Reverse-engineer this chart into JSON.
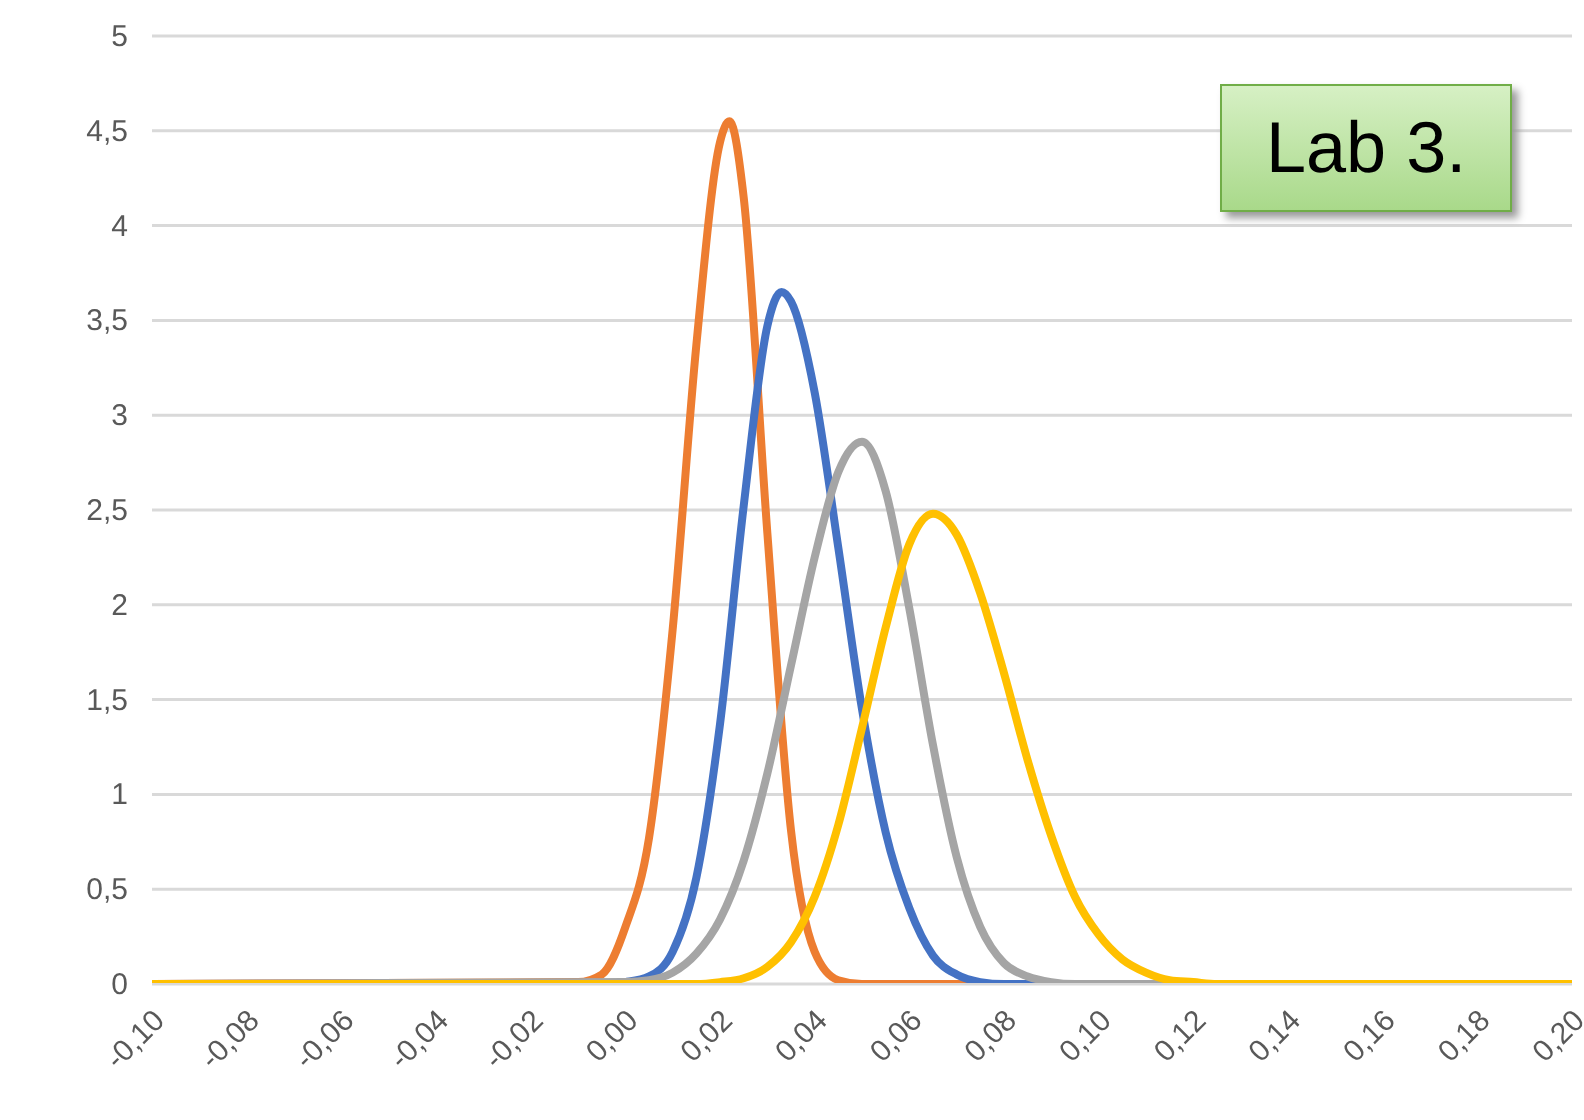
{
  "chart_data": {
    "type": "line",
    "annotations": [
      "Lab 3."
    ],
    "xlim": [
      -0.1,
      0.2
    ],
    "xticks": [
      {
        "value": -0.1,
        "label": "-0,10"
      },
      {
        "value": -0.08,
        "label": "-0,08"
      },
      {
        "value": -0.06,
        "label": "-0,06"
      },
      {
        "value": -0.04,
        "label": "-0,04"
      },
      {
        "value": -0.02,
        "label": "-0,02"
      },
      {
        "value": 0,
        "label": "0,00"
      },
      {
        "value": 0.02,
        "label": "0,02"
      },
      {
        "value": 0.04,
        "label": "0,04"
      },
      {
        "value": 0.06,
        "label": "0,06"
      },
      {
        "value": 0.08,
        "label": "0,08"
      },
      {
        "value": 0.1,
        "label": "0,10"
      },
      {
        "value": 0.12,
        "label": "0,12"
      },
      {
        "value": 0.14,
        "label": "0,14"
      },
      {
        "value": 0.16,
        "label": "0,16"
      },
      {
        "value": 0.18,
        "label": "0,18"
      },
      {
        "value": 0.2,
        "label": "0,20"
      }
    ],
    "ylim": [
      0,
      5
    ],
    "yticks": [
      0,
      {
        "value": 0.5,
        "label": "0,5"
      },
      1,
      {
        "value": 1.5,
        "label": "1,5"
      },
      2,
      {
        "value": 2.5,
        "label": "2,5"
      },
      3,
      {
        "value": 3.5,
        "label": "3,5"
      },
      4,
      {
        "value": 4.5,
        "label": "4,5"
      },
      5
    ],
    "grid": "y",
    "marker": "none",
    "line_style": "solid",
    "series": [
      {
        "color": "#ed7d31",
        "x": [
          -0.1,
          -0.01,
          -0.005,
          0,
          0.005,
          0.01,
          0.015,
          0.02,
          0.022,
          0.025,
          0.03,
          0.035,
          0.04,
          0.045,
          0.05,
          0.2
        ],
        "values": [
          0,
          0.01,
          0.05,
          0.3,
          0.77,
          1.87,
          3.37,
          4.44,
          4.55,
          4.15,
          2.38,
          0.81,
          0.17,
          0.02,
          0,
          0
        ]
      },
      {
        "color": "#4472c4",
        "x": [
          -0.1,
          -0.005,
          0,
          0.005,
          0.01,
          0.015,
          0.02,
          0.025,
          0.03,
          0.033,
          0.035,
          0.04,
          0.045,
          0.05,
          0.055,
          0.06,
          0.065,
          0.07,
          0.075,
          0.08,
          0.2
        ],
        "values": [
          0,
          0,
          0.01,
          0.04,
          0.17,
          0.56,
          1.37,
          2.52,
          3.47,
          3.65,
          3.6,
          3.12,
          2.3,
          1.45,
          0.8,
          0.4,
          0.15,
          0.05,
          0.01,
          0,
          0
        ]
      },
      {
        "color": "#a5a5a5",
        "x": [
          -0.1,
          0,
          0.005,
          0.01,
          0.015,
          0.02,
          0.025,
          0.03,
          0.035,
          0.04,
          0.045,
          0.05,
          0.055,
          0.06,
          0.065,
          0.07,
          0.075,
          0.08,
          0.085,
          0.09,
          0.095,
          0.2
        ],
        "values": [
          0,
          0.01,
          0.02,
          0.06,
          0.16,
          0.34,
          0.65,
          1.11,
          1.68,
          2.25,
          2.7,
          2.86,
          2.6,
          1.98,
          1.26,
          0.67,
          0.3,
          0.11,
          0.04,
          0.01,
          0,
          0
        ]
      },
      {
        "color": "#ffc000",
        "x": [
          -0.1,
          0.015,
          0.02,
          0.025,
          0.03,
          0.035,
          0.04,
          0.045,
          0.05,
          0.055,
          0.06,
          0.065,
          0.07,
          0.075,
          0.08,
          0.085,
          0.09,
          0.095,
          0.1,
          0.105,
          0.11,
          0.115,
          0.12,
          0.125,
          0.2
        ],
        "values": [
          0,
          0,
          0.01,
          0.03,
          0.09,
          0.22,
          0.46,
          0.84,
          1.35,
          1.88,
          2.32,
          2.48,
          2.37,
          2.06,
          1.64,
          1.18,
          0.78,
          0.46,
          0.26,
          0.13,
          0.06,
          0.02,
          0.01,
          0,
          0
        ]
      }
    ]
  }
}
